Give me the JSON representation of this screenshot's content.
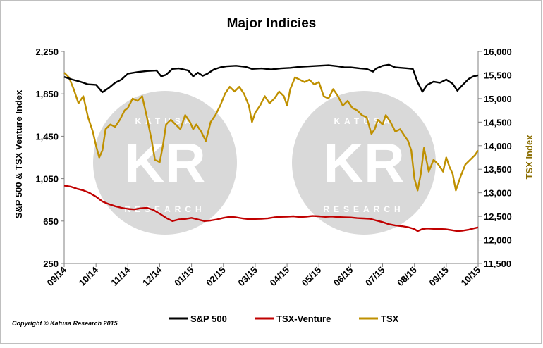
{
  "chart_data": {
    "type": "line",
    "title": "Major Indicies",
    "ylabel_left": "S&P 500 & TSX Venture Index",
    "ylabel_right": "TSX Index",
    "left_axis": {
      "ylim": [
        250,
        2250
      ],
      "ticks": [
        "250",
        "650",
        "1,050",
        "1,450",
        "1,850",
        "2,250"
      ],
      "tick_values": [
        250,
        650,
        1050,
        1450,
        1850,
        2250
      ]
    },
    "right_axis": {
      "ylim": [
        11500,
        16000
      ],
      "ticks": [
        "11,500",
        "12,000",
        "12,500",
        "13,000",
        "13,500",
        "14,000",
        "14,500",
        "15,000",
        "15,500",
        "16,000"
      ],
      "tick_values": [
        11500,
        12000,
        12500,
        13000,
        13500,
        14000,
        14500,
        15000,
        15500,
        16000
      ]
    },
    "x_ticks": [
      "09/14",
      "10/14",
      "11/14",
      "12/14",
      "01/15",
      "02/15",
      "03/15",
      "04/15",
      "05/15",
      "06/15",
      "07/15",
      "08/15",
      "09/15",
      "10/15"
    ],
    "x_range": [
      0,
      13
    ],
    "legend_position": "bottom",
    "grid": false,
    "series": [
      {
        "name": "S&P 500",
        "axis": "left",
        "color": "#000000",
        "points": [
          [
            0,
            2010
          ],
          [
            0.25,
            1985
          ],
          [
            0.5,
            1965
          ],
          [
            0.75,
            1940
          ],
          [
            1.0,
            1935
          ],
          [
            1.2,
            1865
          ],
          [
            1.4,
            1905
          ],
          [
            1.6,
            1955
          ],
          [
            1.8,
            1985
          ],
          [
            2.0,
            2040
          ],
          [
            2.3,
            2055
          ],
          [
            2.6,
            2065
          ],
          [
            2.9,
            2070
          ],
          [
            3.05,
            2015
          ],
          [
            3.2,
            2030
          ],
          [
            3.4,
            2085
          ],
          [
            3.6,
            2090
          ],
          [
            3.9,
            2070
          ],
          [
            4.05,
            2015
          ],
          [
            4.2,
            2050
          ],
          [
            4.35,
            2020
          ],
          [
            4.5,
            2040
          ],
          [
            4.7,
            2080
          ],
          [
            4.9,
            2100
          ],
          [
            5.1,
            2110
          ],
          [
            5.4,
            2115
          ],
          [
            5.7,
            2105
          ],
          [
            5.9,
            2085
          ],
          [
            6.2,
            2090
          ],
          [
            6.5,
            2080
          ],
          [
            6.8,
            2090
          ],
          [
            7.1,
            2095
          ],
          [
            7.4,
            2105
          ],
          [
            7.7,
            2110
          ],
          [
            8.0,
            2115
          ],
          [
            8.3,
            2120
          ],
          [
            8.6,
            2110
          ],
          [
            8.8,
            2100
          ],
          [
            9.0,
            2100
          ],
          [
            9.3,
            2090
          ],
          [
            9.5,
            2085
          ],
          [
            9.7,
            2060
          ],
          [
            9.8,
            2090
          ],
          [
            10.0,
            2115
          ],
          [
            10.2,
            2125
          ],
          [
            10.4,
            2100
          ],
          [
            10.6,
            2095
          ],
          [
            10.8,
            2090
          ],
          [
            10.95,
            2085
          ],
          [
            11.1,
            1960
          ],
          [
            11.25,
            1870
          ],
          [
            11.4,
            1935
          ],
          [
            11.6,
            1965
          ],
          [
            11.8,
            1955
          ],
          [
            12.0,
            1985
          ],
          [
            12.2,
            1945
          ],
          [
            12.35,
            1880
          ],
          [
            12.5,
            1930
          ],
          [
            12.7,
            1990
          ],
          [
            12.85,
            2015
          ],
          [
            13.0,
            2025
          ]
        ]
      },
      {
        "name": "TSX-Venture",
        "axis": "left",
        "color": "#c00000",
        "points": [
          [
            0,
            985
          ],
          [
            0.2,
            975
          ],
          [
            0.4,
            955
          ],
          [
            0.6,
            940
          ],
          [
            0.8,
            915
          ],
          [
            1.0,
            880
          ],
          [
            1.2,
            835
          ],
          [
            1.4,
            810
          ],
          [
            1.6,
            790
          ],
          [
            1.8,
            775
          ],
          [
            2.0,
            765
          ],
          [
            2.2,
            760
          ],
          [
            2.4,
            770
          ],
          [
            2.6,
            775
          ],
          [
            2.8,
            755
          ],
          [
            3.0,
            720
          ],
          [
            3.2,
            680
          ],
          [
            3.4,
            650
          ],
          [
            3.6,
            665
          ],
          [
            3.8,
            670
          ],
          [
            4.0,
            680
          ],
          [
            4.2,
            665
          ],
          [
            4.4,
            650
          ],
          [
            4.6,
            655
          ],
          [
            4.8,
            665
          ],
          [
            5.0,
            680
          ],
          [
            5.2,
            690
          ],
          [
            5.4,
            685
          ],
          [
            5.6,
            675
          ],
          [
            5.8,
            668
          ],
          [
            6.0,
            670
          ],
          [
            6.2,
            672
          ],
          [
            6.4,
            676
          ],
          [
            6.6,
            685
          ],
          [
            6.8,
            690
          ],
          [
            7.0,
            692
          ],
          [
            7.2,
            695
          ],
          [
            7.4,
            688
          ],
          [
            7.6,
            692
          ],
          [
            7.8,
            698
          ],
          [
            8.0,
            695
          ],
          [
            8.2,
            690
          ],
          [
            8.4,
            693
          ],
          [
            8.6,
            688
          ],
          [
            8.8,
            686
          ],
          [
            9.0,
            684
          ],
          [
            9.2,
            678
          ],
          [
            9.4,
            675
          ],
          [
            9.6,
            672
          ],
          [
            9.8,
            655
          ],
          [
            10.0,
            640
          ],
          [
            10.2,
            620
          ],
          [
            10.4,
            608
          ],
          [
            10.6,
            602
          ],
          [
            10.8,
            592
          ],
          [
            11.0,
            575
          ],
          [
            11.1,
            555
          ],
          [
            11.25,
            575
          ],
          [
            11.4,
            580
          ],
          [
            11.6,
            577
          ],
          [
            11.8,
            575
          ],
          [
            12.0,
            572
          ],
          [
            12.15,
            565
          ],
          [
            12.35,
            555
          ],
          [
            12.5,
            558
          ],
          [
            12.7,
            568
          ],
          [
            12.85,
            580
          ],
          [
            13.0,
            590
          ]
        ]
      },
      {
        "name": "TSX",
        "axis": "right",
        "color": "#bf9000",
        "points": [
          [
            0,
            15550
          ],
          [
            0.15,
            15450
          ],
          [
            0.3,
            15200
          ],
          [
            0.45,
            14900
          ],
          [
            0.6,
            15050
          ],
          [
            0.75,
            14600
          ],
          [
            0.9,
            14300
          ],
          [
            1.0,
            14000
          ],
          [
            1.1,
            13750
          ],
          [
            1.2,
            13900
          ],
          [
            1.3,
            14350
          ],
          [
            1.45,
            14450
          ],
          [
            1.6,
            14400
          ],
          [
            1.75,
            14550
          ],
          [
            1.9,
            14750
          ],
          [
            2.0,
            14800
          ],
          [
            2.15,
            15000
          ],
          [
            2.3,
            14950
          ],
          [
            2.45,
            15050
          ],
          [
            2.6,
            14600
          ],
          [
            2.75,
            14100
          ],
          [
            2.85,
            13700
          ],
          [
            3.0,
            13650
          ],
          [
            3.1,
            14000
          ],
          [
            3.2,
            14450
          ],
          [
            3.35,
            14550
          ],
          [
            3.5,
            14450
          ],
          [
            3.65,
            14350
          ],
          [
            3.8,
            14650
          ],
          [
            3.95,
            14500
          ],
          [
            4.05,
            14350
          ],
          [
            4.15,
            14450
          ],
          [
            4.3,
            14300
          ],
          [
            4.45,
            14100
          ],
          [
            4.6,
            14500
          ],
          [
            4.75,
            14650
          ],
          [
            4.9,
            14850
          ],
          [
            5.05,
            15100
          ],
          [
            5.2,
            15250
          ],
          [
            5.35,
            15150
          ],
          [
            5.5,
            15250
          ],
          [
            5.65,
            15100
          ],
          [
            5.8,
            14850
          ],
          [
            5.9,
            14500
          ],
          [
            6.0,
            14700
          ],
          [
            6.15,
            14850
          ],
          [
            6.3,
            15050
          ],
          [
            6.45,
            14900
          ],
          [
            6.6,
            15000
          ],
          [
            6.75,
            15150
          ],
          [
            6.9,
            15050
          ],
          [
            7.0,
            14850
          ],
          [
            7.1,
            15200
          ],
          [
            7.25,
            15450
          ],
          [
            7.4,
            15400
          ],
          [
            7.55,
            15350
          ],
          [
            7.7,
            15400
          ],
          [
            7.85,
            15300
          ],
          [
            8.0,
            15350
          ],
          [
            8.15,
            15050
          ],
          [
            8.3,
            15000
          ],
          [
            8.45,
            15200
          ],
          [
            8.6,
            15050
          ],
          [
            8.75,
            14850
          ],
          [
            8.9,
            14950
          ],
          [
            9.05,
            14800
          ],
          [
            9.2,
            14750
          ],
          [
            9.35,
            14650
          ],
          [
            9.5,
            14600
          ],
          [
            9.65,
            14250
          ],
          [
            9.75,
            14350
          ],
          [
            9.85,
            14550
          ],
          [
            10.0,
            14450
          ],
          [
            10.1,
            14650
          ],
          [
            10.25,
            14500
          ],
          [
            10.4,
            14300
          ],
          [
            10.55,
            14350
          ],
          [
            10.7,
            14200
          ],
          [
            10.8,
            14100
          ],
          [
            10.9,
            13900
          ],
          [
            11.0,
            13300
          ],
          [
            11.1,
            13050
          ],
          [
            11.2,
            13400
          ],
          [
            11.3,
            13950
          ],
          [
            11.45,
            13450
          ],
          [
            11.6,
            13700
          ],
          [
            11.75,
            13600
          ],
          [
            11.9,
            13450
          ],
          [
            12.0,
            13750
          ],
          [
            12.1,
            13550
          ],
          [
            12.2,
            13400
          ],
          [
            12.3,
            13050
          ],
          [
            12.45,
            13350
          ],
          [
            12.6,
            13600
          ],
          [
            12.75,
            13700
          ],
          [
            12.9,
            13800
          ],
          [
            13.0,
            13900
          ]
        ]
      }
    ]
  },
  "copyright": "Copyright © Katusa Research 2015",
  "watermark": {
    "letters": "KR",
    "word_top": "KATUSA",
    "word_bottom": "RESEARCH"
  }
}
